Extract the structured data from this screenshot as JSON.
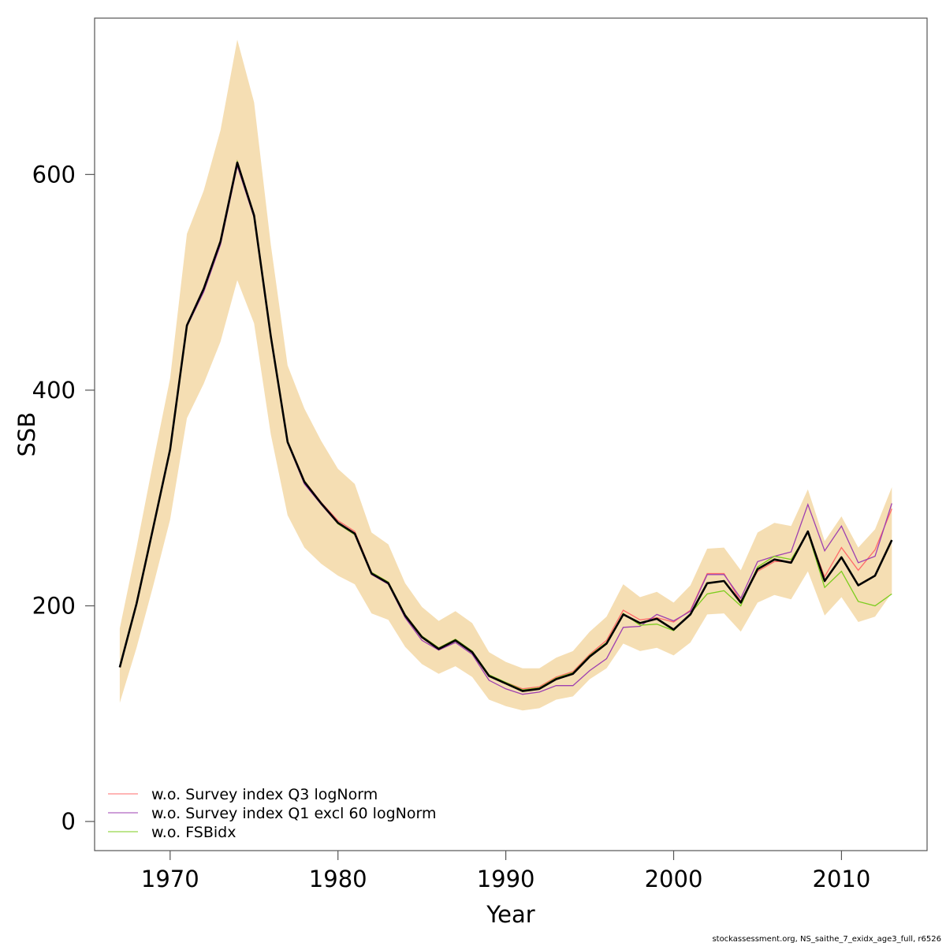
{
  "chart_data": {
    "type": "line",
    "xlabel": "Year",
    "ylabel": "SSB",
    "xlim": [
      1965.5,
      2015.1
    ],
    "ylim": [
      -27,
      745
    ],
    "x_ticks": [
      1970,
      1980,
      1990,
      2000,
      2010
    ],
    "y_ticks": [
      0,
      200,
      400,
      600
    ],
    "grid": false,
    "legend_position": "bottom-left",
    "colors": {
      "band": "#f5deb3",
      "estimate": "#000000",
      "q3": "#ff6b6b",
      "q1": "#9e3fb0",
      "fsb": "#7ccd1e"
    },
    "x": [
      1967,
      1968,
      1969,
      1970,
      1971,
      1972,
      1973,
      1974,
      1975,
      1976,
      1977,
      1978,
      1979,
      1980,
      1981,
      1982,
      1983,
      1984,
      1985,
      1986,
      1987,
      1988,
      1989,
      1990,
      1991,
      1992,
      1993,
      1994,
      1995,
      1996,
      1997,
      1998,
      1999,
      2000,
      2001,
      2002,
      2003,
      2004,
      2005,
      2006,
      2007,
      2008,
      2009,
      2010,
      2011,
      2012,
      2013
    ],
    "estimate": [
      143,
      202,
      273,
      345,
      460,
      494,
      538,
      611,
      562,
      450,
      352,
      315,
      295,
      277,
      267,
      230,
      221,
      191,
      171,
      160,
      168,
      157,
      135,
      128,
      121,
      123,
      132,
      137,
      153,
      165,
      192,
      184,
      188,
      178,
      192,
      221,
      223,
      203,
      234,
      243,
      240,
      269,
      223,
      245,
      219,
      228,
      261
    ],
    "upper": [
      179,
      254,
      334,
      411,
      545,
      585,
      641,
      725,
      667,
      535,
      423,
      383,
      353,
      327,
      313,
      268,
      257,
      221,
      199,
      186,
      195,
      184,
      157,
      148,
      142,
      142,
      152,
      158,
      176,
      190,
      220,
      208,
      213,
      203,
      219,
      253,
      254,
      233,
      268,
      277,
      274,
      308,
      260,
      283,
      254,
      271,
      310
    ],
    "lower": [
      110,
      161,
      219,
      280,
      374,
      406,
      445,
      502,
      462,
      359,
      284,
      254,
      239,
      228,
      220,
      193,
      187,
      162,
      146,
      137,
      144,
      134,
      113,
      107,
      103,
      105,
      113,
      116,
      132,
      142,
      165,
      158,
      161,
      154,
      166,
      192,
      193,
      176,
      203,
      210,
      206,
      232,
      191,
      208,
      185,
      190,
      212
    ],
    "series": [
      {
        "name": "w.o. Survey index Q3 logNorm",
        "color": "#ff6b6b",
        "values": [
          144,
          203,
          274,
          346,
          461,
          494,
          539,
          612,
          563,
          451,
          353,
          316,
          296,
          279,
          269,
          231,
          222,
          192,
          172,
          161,
          169,
          158,
          135,
          129,
          123,
          125,
          134,
          139,
          155,
          168,
          196,
          187,
          189,
          185,
          196,
          230,
          230,
          204,
          232,
          241,
          241,
          268,
          227,
          254,
          233,
          252,
          290
        ]
      },
      {
        "name": "w.o. Survey index Q1 excl 60 logNorm",
        "color": "#9e3fb0",
        "values": [
          143,
          202,
          272,
          344,
          459,
          491,
          535,
          608,
          560,
          448,
          351,
          313,
          294,
          276,
          266,
          229,
          220,
          189,
          168,
          159,
          166,
          155,
          131,
          123,
          118,
          120,
          126,
          126,
          140,
          151,
          180,
          181,
          192,
          186,
          195,
          229,
          229,
          207,
          241,
          246,
          250,
          294,
          251,
          274,
          240,
          246,
          295
        ]
      },
      {
        "name": "w.o. FSBidx",
        "color": "#7ccd1e",
        "values": [
          144,
          203,
          273,
          345,
          460,
          494,
          538,
          612,
          563,
          451,
          352,
          316,
          295,
          276,
          266,
          231,
          222,
          192,
          172,
          161,
          169,
          158,
          136,
          129,
          122,
          124,
          133,
          138,
          154,
          166,
          193,
          182,
          183,
          177,
          193,
          211,
          214,
          200,
          236,
          246,
          243,
          268,
          217,
          232,
          204,
          200,
          211
        ]
      }
    ]
  },
  "legend": {
    "entries": [
      {
        "label": "w.o. Survey index Q3 logNorm",
        "color": "#ff6b6b"
      },
      {
        "label": "w.o. Survey index Q1 excl 60 logNorm",
        "color": "#9e3fb0"
      },
      {
        "label": "w.o. FSBidx",
        "color": "#7ccd1e"
      }
    ]
  },
  "footer": "stockassessment.org, NS_saithe_7_exidx_age3_full, r6526"
}
